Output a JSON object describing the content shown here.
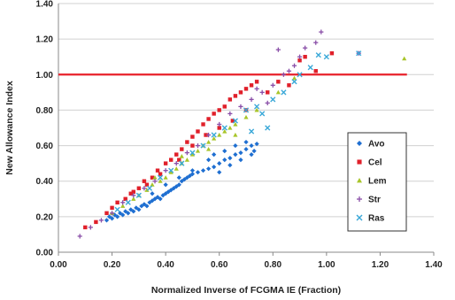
{
  "chart_data": {
    "type": "scatter",
    "xlabel": "Normalized Inverse of FCGMA IE (Fraction)",
    "ylabel": "New Allowance Index",
    "xlim": [
      0,
      1.4
    ],
    "ylim": [
      0,
      1.4
    ],
    "xticks": [
      "0.00",
      "0.20",
      "0.40",
      "0.60",
      "0.80",
      "1.00",
      "1.20",
      "1.40"
    ],
    "yticks": [
      "0.00",
      "0.20",
      "0.40",
      "0.60",
      "0.80",
      "1.00",
      "1.20",
      "1.40"
    ],
    "grid": "horizontal",
    "legend_position": "right",
    "reference_line": {
      "y": 1.0,
      "x_range": [
        0.0,
        1.3
      ],
      "color": "#e8202a"
    },
    "series": [
      {
        "name": "Avo",
        "color": "#1f6fd1",
        "marker": "diamond",
        "points": [
          [
            0.18,
            0.18
          ],
          [
            0.19,
            0.2
          ],
          [
            0.2,
            0.19
          ],
          [
            0.21,
            0.21
          ],
          [
            0.22,
            0.2
          ],
          [
            0.23,
            0.22
          ],
          [
            0.24,
            0.21
          ],
          [
            0.25,
            0.23
          ],
          [
            0.26,
            0.22
          ],
          [
            0.27,
            0.24
          ],
          [
            0.28,
            0.23
          ],
          [
            0.29,
            0.25
          ],
          [
            0.3,
            0.24
          ],
          [
            0.31,
            0.26
          ],
          [
            0.32,
            0.27
          ],
          [
            0.33,
            0.26
          ],
          [
            0.34,
            0.28
          ],
          [
            0.35,
            0.29
          ],
          [
            0.36,
            0.3
          ],
          [
            0.37,
            0.31
          ],
          [
            0.38,
            0.3
          ],
          [
            0.39,
            0.32
          ],
          [
            0.4,
            0.33
          ],
          [
            0.41,
            0.34
          ],
          [
            0.42,
            0.35
          ],
          [
            0.43,
            0.36
          ],
          [
            0.44,
            0.37
          ],
          [
            0.45,
            0.38
          ],
          [
            0.46,
            0.4
          ],
          [
            0.47,
            0.41
          ],
          [
            0.48,
            0.42
          ],
          [
            0.49,
            0.43
          ],
          [
            0.5,
            0.44
          ],
          [
            0.52,
            0.45
          ],
          [
            0.54,
            0.46
          ],
          [
            0.56,
            0.47
          ],
          [
            0.58,
            0.48
          ],
          [
            0.6,
            0.5
          ],
          [
            0.62,
            0.52
          ],
          [
            0.64,
            0.53
          ],
          [
            0.66,
            0.55
          ],
          [
            0.68,
            0.56
          ],
          [
            0.7,
            0.58
          ],
          [
            0.72,
            0.6
          ],
          [
            0.74,
            0.61
          ],
          [
            0.56,
            0.52
          ],
          [
            0.58,
            0.55
          ],
          [
            0.62,
            0.57
          ],
          [
            0.66,
            0.6
          ],
          [
            0.7,
            0.62
          ],
          [
            0.73,
            0.57
          ],
          [
            0.5,
            0.46
          ],
          [
            0.45,
            0.42
          ],
          [
            0.4,
            0.38
          ],
          [
            0.35,
            0.33
          ],
          [
            0.6,
            0.45
          ],
          [
            0.64,
            0.49
          ],
          [
            0.68,
            0.52
          ],
          [
            0.72,
            0.55
          ]
        ]
      },
      {
        "name": "Cel",
        "color": "#e0202a",
        "marker": "square",
        "points": [
          [
            0.1,
            0.14
          ],
          [
            0.14,
            0.17
          ],
          [
            0.18,
            0.22
          ],
          [
            0.2,
            0.25
          ],
          [
            0.22,
            0.28
          ],
          [
            0.25,
            0.3
          ],
          [
            0.27,
            0.33
          ],
          [
            0.3,
            0.36
          ],
          [
            0.32,
            0.4
          ],
          [
            0.35,
            0.42
          ],
          [
            0.37,
            0.46
          ],
          [
            0.4,
            0.5
          ],
          [
            0.42,
            0.52
          ],
          [
            0.44,
            0.55
          ],
          [
            0.46,
            0.58
          ],
          [
            0.48,
            0.62
          ],
          [
            0.5,
            0.65
          ],
          [
            0.52,
            0.68
          ],
          [
            0.54,
            0.72
          ],
          [
            0.56,
            0.75
          ],
          [
            0.58,
            0.78
          ],
          [
            0.6,
            0.8
          ],
          [
            0.62,
            0.82
          ],
          [
            0.64,
            0.86
          ],
          [
            0.66,
            0.88
          ],
          [
            0.68,
            0.9
          ],
          [
            0.7,
            0.92
          ],
          [
            0.72,
            0.94
          ],
          [
            0.74,
            0.96
          ],
          [
            0.78,
            0.9
          ],
          [
            0.82,
            0.96
          ],
          [
            0.86,
            0.94
          ],
          [
            0.9,
            1.08
          ],
          [
            0.92,
            1.1
          ],
          [
            0.96,
            1.02
          ],
          [
            1.02,
            1.12
          ],
          [
            0.5,
            0.6
          ],
          [
            0.55,
            0.66
          ],
          [
            0.6,
            0.7
          ],
          [
            0.65,
            0.74
          ],
          [
            0.7,
            0.8
          ],
          [
            0.45,
            0.52
          ],
          [
            0.38,
            0.44
          ],
          [
            0.33,
            0.38
          ],
          [
            0.28,
            0.34
          ]
        ]
      },
      {
        "name": "Lem",
        "color": "#a8c52a",
        "marker": "triangle",
        "points": [
          [
            0.2,
            0.22
          ],
          [
            0.24,
            0.26
          ],
          [
            0.28,
            0.3
          ],
          [
            0.3,
            0.32
          ],
          [
            0.33,
            0.35
          ],
          [
            0.35,
            0.38
          ],
          [
            0.38,
            0.4
          ],
          [
            0.4,
            0.42
          ],
          [
            0.42,
            0.45
          ],
          [
            0.44,
            0.47
          ],
          [
            0.46,
            0.5
          ],
          [
            0.48,
            0.52
          ],
          [
            0.5,
            0.55
          ],
          [
            0.52,
            0.57
          ],
          [
            0.54,
            0.6
          ],
          [
            0.56,
            0.62
          ],
          [
            0.58,
            0.64
          ],
          [
            0.6,
            0.66
          ],
          [
            0.62,
            0.68
          ],
          [
            0.64,
            0.7
          ],
          [
            0.66,
            0.72
          ],
          [
            0.7,
            0.76
          ],
          [
            0.74,
            0.8
          ],
          [
            0.82,
            0.9
          ],
          [
            0.88,
            0.98
          ],
          [
            1.29,
            1.09
          ],
          [
            0.36,
            0.42
          ],
          [
            0.46,
            0.54
          ],
          [
            0.56,
            0.58
          ],
          [
            0.66,
            0.66
          ]
        ]
      },
      {
        "name": "Str",
        "color": "#8a4fa8",
        "marker": "cross",
        "points": [
          [
            0.08,
            0.09
          ],
          [
            0.12,
            0.14
          ],
          [
            0.16,
            0.18
          ],
          [
            0.2,
            0.22
          ],
          [
            0.24,
            0.28
          ],
          [
            0.28,
            0.32
          ],
          [
            0.32,
            0.36
          ],
          [
            0.36,
            0.4
          ],
          [
            0.4,
            0.46
          ],
          [
            0.44,
            0.5
          ],
          [
            0.48,
            0.56
          ],
          [
            0.52,
            0.6
          ],
          [
            0.56,
            0.66
          ],
          [
            0.6,
            0.72
          ],
          [
            0.64,
            0.78
          ],
          [
            0.68,
            0.82
          ],
          [
            0.72,
            0.86
          ],
          [
            0.76,
            0.9
          ],
          [
            0.8,
            0.94
          ],
          [
            0.84,
            1.0
          ],
          [
            0.86,
            1.02
          ],
          [
            0.88,
            1.05
          ],
          [
            0.9,
            1.1
          ],
          [
            0.92,
            1.15
          ],
          [
            0.96,
            1.18
          ],
          [
            0.98,
            1.24
          ],
          [
            0.82,
            1.14
          ],
          [
            1.12,
            1.12
          ],
          [
            0.74,
            0.92
          ],
          [
            0.78,
            0.84
          ]
        ]
      },
      {
        "name": "Ras",
        "color": "#3aa8d8",
        "marker": "x",
        "points": [
          [
            0.22,
            0.24
          ],
          [
            0.26,
            0.28
          ],
          [
            0.3,
            0.32
          ],
          [
            0.34,
            0.36
          ],
          [
            0.38,
            0.42
          ],
          [
            0.42,
            0.46
          ],
          [
            0.46,
            0.5
          ],
          [
            0.5,
            0.56
          ],
          [
            0.54,
            0.6
          ],
          [
            0.58,
            0.66
          ],
          [
            0.62,
            0.7
          ],
          [
            0.66,
            0.74
          ],
          [
            0.7,
            0.8
          ],
          [
            0.74,
            0.82
          ],
          [
            0.76,
            0.78
          ],
          [
            0.8,
            0.86
          ],
          [
            0.84,
            0.9
          ],
          [
            0.88,
            0.96
          ],
          [
            0.9,
            1.0
          ],
          [
            0.94,
            1.04
          ],
          [
            0.97,
            1.11
          ],
          [
            1.0,
            1.1
          ],
          [
            1.12,
            1.12
          ],
          [
            0.78,
            0.7
          ],
          [
            0.72,
            0.68
          ]
        ]
      }
    ]
  }
}
